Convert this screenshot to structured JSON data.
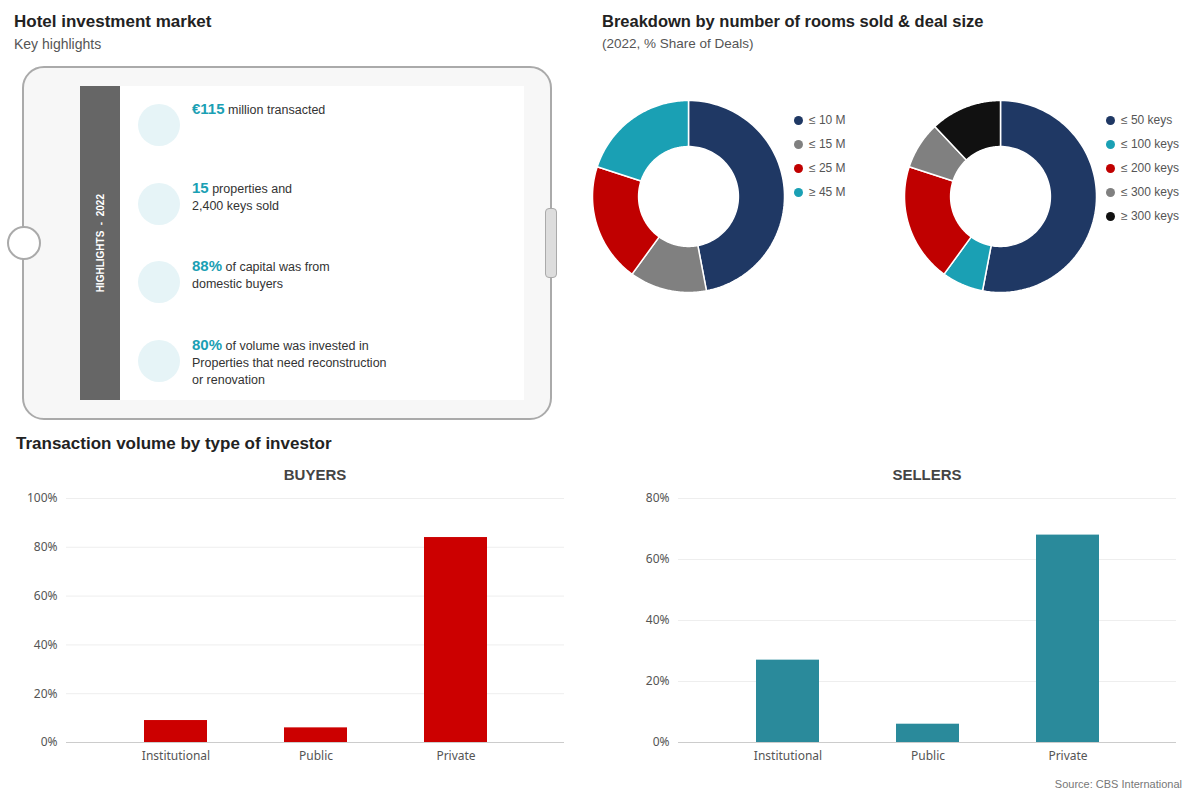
{
  "chart_data": [
    {
      "type": "text",
      "title": "Hotel investment market",
      "subtitle": "Key highlights",
      "color": "#1aa0b4",
      "annotations": [
        "HIGHLIGHTS  -  2022",
        [
          "€115 million transacted"
        ],
        [
          "15 properties and",
          "2,400 keys sold"
        ],
        [
          "88% of capital was from",
          "domestic buyers"
        ],
        [
          "80% of volume was invested in",
          "Properties that need reconstruction",
          "or renovation"
        ]
      ]
    },
    {
      "type": "donut",
      "title": "Breakdown by number of rooms sold & deal size",
      "subtitle": "(2022, % Share of Deals)",
      "categories": [
        "≤ 10 M",
        "≤ 15 M",
        "≤ 25 M",
        "≥ 45 M"
      ],
      "values": [
        47,
        13,
        20,
        20
      ],
      "colors": [
        "#1f3864",
        "#808080",
        "#c00000",
        "#1aa0b4"
      ],
      "legend": "right"
    },
    {
      "type": "donut",
      "categories": [
        "≤ 50 keys",
        "≤ 100 keys",
        "≤ 200 keys",
        "≤ 300 keys",
        "≥ 300 keys"
      ],
      "values": [
        53,
        7,
        20,
        8,
        12
      ],
      "colors": [
        "#1f3864",
        "#1aa0b4",
        "#c00000",
        "#808080",
        "#111111"
      ],
      "legend": "right"
    },
    {
      "type": "bar",
      "title": "BUYERS",
      "subtitle": "Transaction volume by type of investor",
      "categories": [
        "Institutional",
        "Public",
        "Private"
      ],
      "values": [
        9,
        6,
        84
      ],
      "color": "#cc0000",
      "ylim": [
        0,
        100
      ],
      "yticks": [
        {
          "value": 0,
          "label": "0%"
        },
        {
          "value": 20,
          "label": "20%"
        },
        {
          "value": 40,
          "label": "40%"
        },
        {
          "value": 60,
          "label": "60%"
        },
        {
          "value": 80,
          "label": "80%"
        },
        {
          "value": 100,
          "label": "100%"
        }
      ],
      "grid": true
    },
    {
      "type": "bar",
      "title": "SELLERS",
      "categories": [
        "Institutional",
        "Public",
        "Private"
      ],
      "values": [
        27,
        6,
        68
      ],
      "color": "#2a8a9b",
      "ylim": [
        0,
        80
      ],
      "yticks": [
        {
          "value": 0,
          "label": "0%"
        },
        {
          "value": 20,
          "label": "20%"
        },
        {
          "value": 40,
          "label": "40%"
        },
        {
          "value": 60,
          "label": "60%"
        },
        {
          "value": 80,
          "label": "80%"
        }
      ],
      "grid": true,
      "annotations": [
        "Source: CBS International"
      ]
    }
  ]
}
